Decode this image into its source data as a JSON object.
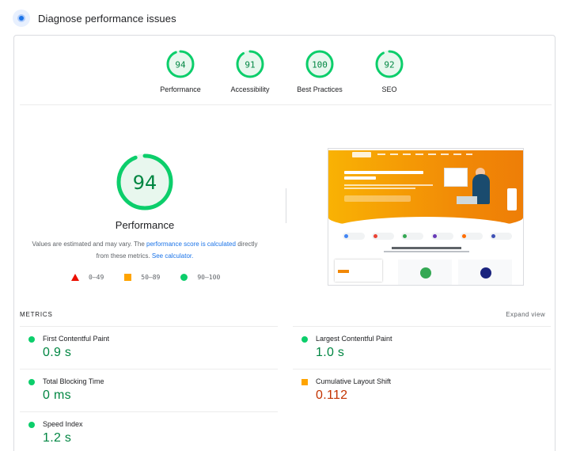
{
  "header": {
    "title": "Diagnose performance issues"
  },
  "colors": {
    "good": "#0cce6b",
    "good_text": "#018642",
    "average": "#ffa400",
    "average_text": "#c33300",
    "fail": "#eb0f00",
    "link": "#1a73e8"
  },
  "gauges": [
    {
      "score": "94",
      "label": "Performance",
      "value": 94
    },
    {
      "score": "91",
      "label": "Accessibility",
      "value": 91
    },
    {
      "score": "100",
      "label": "Best Practices",
      "value": 100
    },
    {
      "score": "92",
      "label": "SEO",
      "value": 92
    }
  ],
  "main": {
    "score": "94",
    "value": 94,
    "label": "Performance",
    "note_prefix": "Values are estimated and may vary. The",
    "note_link1": "performance score is calculated",
    "note_middle": "directly from these metrics.",
    "note_link2": "See calculator."
  },
  "legend": {
    "fail": "0–49",
    "average": "50–89",
    "pass": "90–100"
  },
  "metrics": {
    "title": "METRICS",
    "expand_label": "Expand view",
    "items": [
      {
        "label": "First Contentful Paint",
        "value": "0.9 s",
        "rating": "good"
      },
      {
        "label": "Largest Contentful Paint",
        "value": "1.0 s",
        "rating": "good"
      },
      {
        "label": "Total Blocking Time",
        "value": "0 ms",
        "rating": "good"
      },
      {
        "label": "Cumulative Layout Shift",
        "value": "0.112",
        "rating": "average"
      },
      {
        "label": "Speed Index",
        "value": "1.2 s",
        "rating": "good"
      }
    ]
  }
}
